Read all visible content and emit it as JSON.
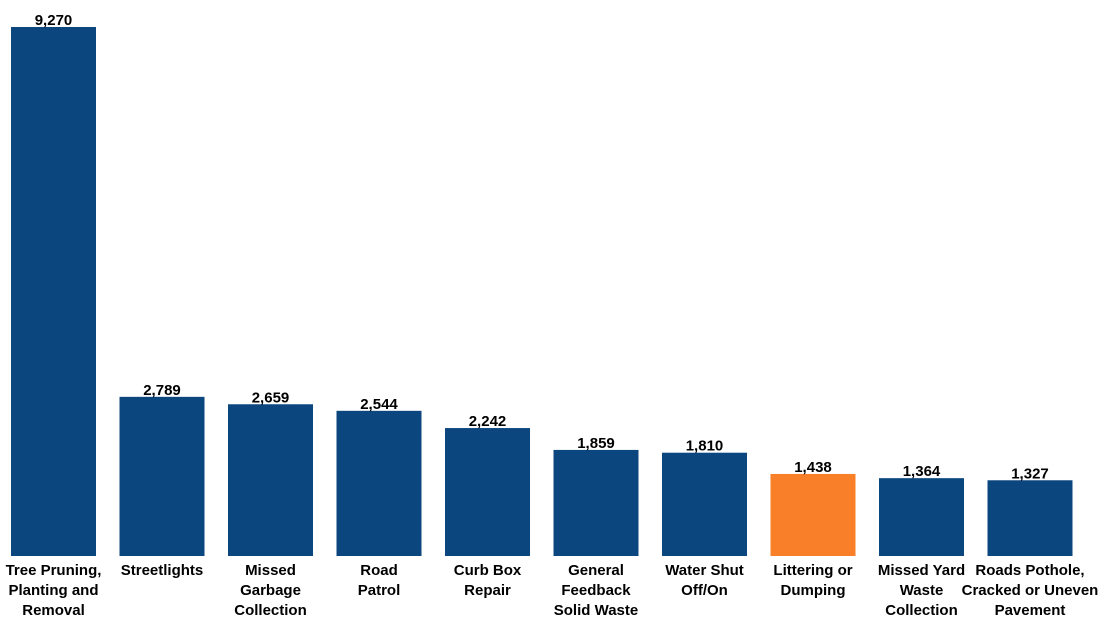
{
  "chart_data": {
    "type": "bar",
    "title": "",
    "xlabel": "",
    "ylabel": "",
    "ylim": [
      0,
      9270
    ],
    "grid": false,
    "legend": "none",
    "default_color": "#0b467f",
    "highlight_color": "#f97f29",
    "highlight_index": 7,
    "categories": [
      "Tree Pruning, Planting and Removal",
      "Streetlights",
      "Missed Garbage Collection",
      "Road Patrol",
      "Curb Box Repair",
      "General Feedback Solid Waste",
      "Water Shut Off/On",
      "Littering or Dumping",
      "Missed Yard Waste Collection",
      "Roads Pothole, Cracked or Uneven Pavement"
    ],
    "category_lines": [
      [
        "Tree Pruning,",
        "Planting and",
        "Removal"
      ],
      [
        "Streetlights"
      ],
      [
        "Missed",
        "Garbage",
        "Collection"
      ],
      [
        "Road",
        "Patrol"
      ],
      [
        "Curb Box",
        "Repair"
      ],
      [
        "General",
        "Feedback",
        "Solid Waste"
      ],
      [
        "Water Shut",
        "Off/On"
      ],
      [
        "Littering or",
        "Dumping"
      ],
      [
        "Missed Yard",
        "Waste",
        "Collection"
      ],
      [
        "Roads Pothole,",
        "Cracked or Uneven",
        "Pavement"
      ]
    ],
    "values": [
      9270,
      2789,
      2659,
      2544,
      2242,
      1859,
      1810,
      1438,
      1364,
      1327
    ],
    "value_labels": [
      "9,270",
      "2,789",
      "2,659",
      "2,544",
      "2,242",
      "1,859",
      "1,810",
      "1,438",
      "1,364",
      "1,327"
    ]
  }
}
